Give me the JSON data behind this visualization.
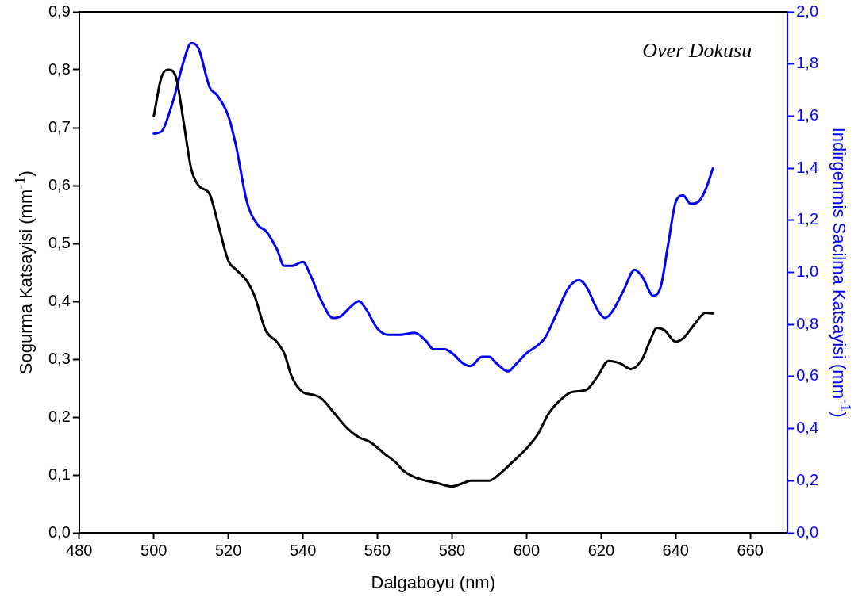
{
  "chart_data": {
    "type": "line",
    "xlabel": "Dalgaboyu (nm)",
    "ylabel": "Sogurma Katsayisi (mm$^{-1}$)",
    "y2label": "Indirgenmis Sacilma Katsayisi (mm$^{-1}$)",
    "annotations": [
      "Over Dokusu"
    ],
    "xlim": [
      480,
      670
    ],
    "xticks": [
      480,
      500,
      520,
      540,
      560,
      580,
      600,
      620,
      640,
      660
    ],
    "ylim": [
      0,
      0.9
    ],
    "yticks": [
      {
        "value": 0,
        "label": "0,0"
      },
      {
        "value": 0.1,
        "label": "0,1"
      },
      {
        "value": 0.2,
        "label": "0,2"
      },
      {
        "value": 0.3,
        "label": "0,3"
      },
      {
        "value": 0.4,
        "label": "0,4"
      },
      {
        "value": 0.5,
        "label": "0,5"
      },
      {
        "value": 0.6,
        "label": "0,6"
      },
      {
        "value": 0.7,
        "label": "0,7"
      },
      {
        "value": 0.8,
        "label": "0,8"
      },
      {
        "value": 0.9,
        "label": "0,9"
      }
    ],
    "y2lim": [
      0,
      2.0
    ],
    "y2ticks": [
      {
        "value": 0,
        "label": "0,0"
      },
      {
        "value": 0.2,
        "label": "0,2"
      },
      {
        "value": 0.4,
        "label": "0,4"
      },
      {
        "value": 0.6,
        "label": "0,6"
      },
      {
        "value": 0.8,
        "label": "0,8"
      },
      {
        "value": 1.0,
        "label": "1,0"
      },
      {
        "value": 1.2,
        "label": "1,2"
      },
      {
        "value": 1.4,
        "label": "1,4"
      },
      {
        "value": 1.6,
        "label": "1,6"
      },
      {
        "value": 1.8,
        "label": "1,8"
      },
      {
        "value": 2.0,
        "label": "2,0"
      }
    ],
    "grid": false,
    "legend": false,
    "marker": "none",
    "line_style": "solid",
    "series": [
      {
        "color": "#000000",
        "x": [
          500,
          502,
          504,
          506,
          508,
          510,
          512,
          515,
          517,
          520,
          522,
          525,
          527,
          530,
          533,
          535,
          537,
          540,
          543,
          545,
          548,
          552,
          555,
          558,
          562,
          565,
          567,
          570,
          573,
          576,
          580,
          583,
          585,
          590,
          593,
          596,
          600,
          603,
          606,
          609,
          612,
          616,
          619,
          622,
          625,
          628,
          631,
          633,
          635,
          637,
          640,
          642,
          645,
          648,
          650
        ],
        "values": [
          0.72,
          0.786,
          0.8,
          0.786,
          0.71,
          0.63,
          0.6,
          0.585,
          0.54,
          0.47,
          0.455,
          0.435,
          0.41,
          0.35,
          0.33,
          0.31,
          0.27,
          0.243,
          0.238,
          0.232,
          0.21,
          0.18,
          0.165,
          0.157,
          0.136,
          0.121,
          0.107,
          0.096,
          0.09,
          0.086,
          0.08,
          0.086,
          0.09,
          0.09,
          0.103,
          0.121,
          0.146,
          0.17,
          0.207,
          0.229,
          0.243,
          0.247,
          0.27,
          0.297,
          0.293,
          0.283,
          0.3,
          0.33,
          0.354,
          0.35,
          0.33,
          0.336,
          0.36,
          0.38,
          0.379
        ]
      },
      {
        "color": "#0000ff",
        "axis": "y2",
        "x": [
          500,
          502,
          505,
          508,
          510,
          512,
          515,
          517,
          520,
          522,
          525,
          528,
          530,
          533,
          535,
          537,
          540,
          542,
          545,
          548,
          550,
          553,
          555,
          557,
          560,
          563,
          566,
          570,
          573,
          575,
          578,
          580,
          583,
          585,
          588,
          590,
          592,
          595,
          597,
          600,
          603,
          605,
          608,
          611,
          614,
          616,
          619,
          621,
          623,
          626,
          629,
          631,
          634,
          636,
          638,
          640,
          642,
          644,
          646,
          648,
          650
        ],
        "values": [
          1.533,
          1.54,
          1.65,
          1.81,
          1.88,
          1.86,
          1.71,
          1.68,
          1.6,
          1.49,
          1.27,
          1.18,
          1.16,
          1.09,
          1.025,
          1.025,
          1.04,
          0.99,
          0.89,
          0.825,
          0.83,
          0.87,
          0.89,
          0.857,
          0.784,
          0.76,
          0.76,
          0.768,
          0.737,
          0.705,
          0.705,
          0.69,
          0.65,
          0.64,
          0.676,
          0.676,
          0.65,
          0.62,
          0.645,
          0.69,
          0.72,
          0.75,
          0.84,
          0.935,
          0.97,
          0.946,
          0.857,
          0.825,
          0.85,
          0.93,
          1.01,
          0.984,
          0.91,
          0.946,
          1.11,
          1.27,
          1.295,
          1.263,
          1.27,
          1.317,
          1.4
        ]
      }
    ]
  }
}
